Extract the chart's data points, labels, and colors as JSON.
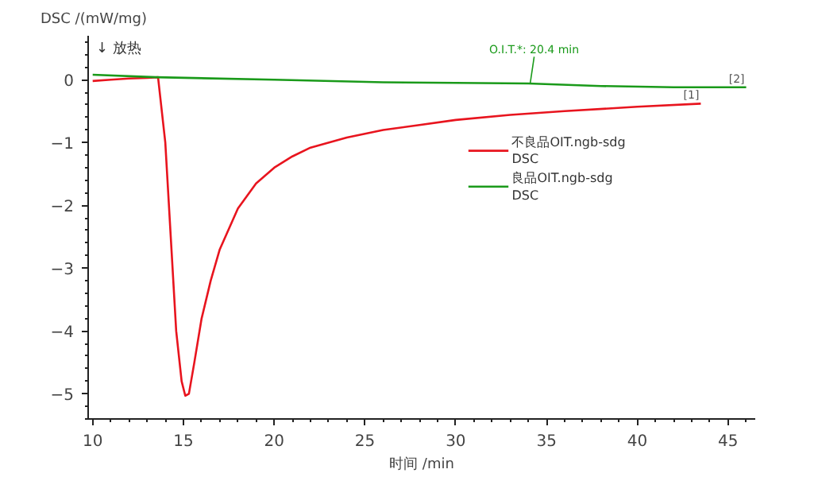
{
  "chart_data": {
    "type": "line",
    "ylabel": "DSC /(mW/mg)",
    "xlabel": "时间 /min",
    "xlim": [
      9.75,
      46.5
    ],
    "ylim": [
      -5.4,
      0.7
    ],
    "xticks": [
      10,
      15,
      20,
      25,
      30,
      35,
      40,
      45
    ],
    "yticks": [
      -5,
      -4,
      -3,
      -2,
      -1,
      0
    ],
    "grid": false,
    "legend": "center",
    "line_style": "solid",
    "marker": "none",
    "annotations": [
      "↓ 放热",
      {
        "text": "O.I.T.*: 20.4 min",
        "x": 34.1,
        "y": -0.06
      },
      {
        "text": "[1]",
        "x": 43.5,
        "y": -0.38
      },
      {
        "text": "[2]",
        "x": 46,
        "y": -0.12
      }
    ],
    "series": [
      {
        "name": "不良品OIT.ngb-sdg DSC",
        "color": "#e8141e",
        "x": [
          10,
          11,
          12,
          13,
          13.6,
          14,
          14.3,
          14.6,
          14.9,
          15.1,
          15.3,
          15.6,
          16,
          16.5,
          17,
          18,
          19,
          20,
          21,
          22,
          24,
          26,
          28,
          30,
          33,
          36,
          40,
          43.5
        ],
        "values": [
          -0.02,
          0.0,
          0.02,
          0.03,
          0.04,
          -1.0,
          -2.5,
          -4.0,
          -4.8,
          -5.03,
          -5.0,
          -4.5,
          -3.8,
          -3.2,
          -2.7,
          -2.05,
          -1.65,
          -1.4,
          -1.22,
          -1.08,
          -0.92,
          -0.8,
          -0.72,
          -0.64,
          -0.56,
          -0.5,
          -0.43,
          -0.38
        ]
      },
      {
        "name": "良品OIT.ngb-sdg DSC",
        "color": "#1a9a1a",
        "x": [
          10,
          13.5,
          20,
          26,
          30,
          34,
          38,
          42,
          46
        ],
        "values": [
          0.08,
          0.04,
          0.0,
          -0.04,
          -0.05,
          -0.06,
          -0.1,
          -0.12,
          -0.12
        ]
      }
    ]
  }
}
